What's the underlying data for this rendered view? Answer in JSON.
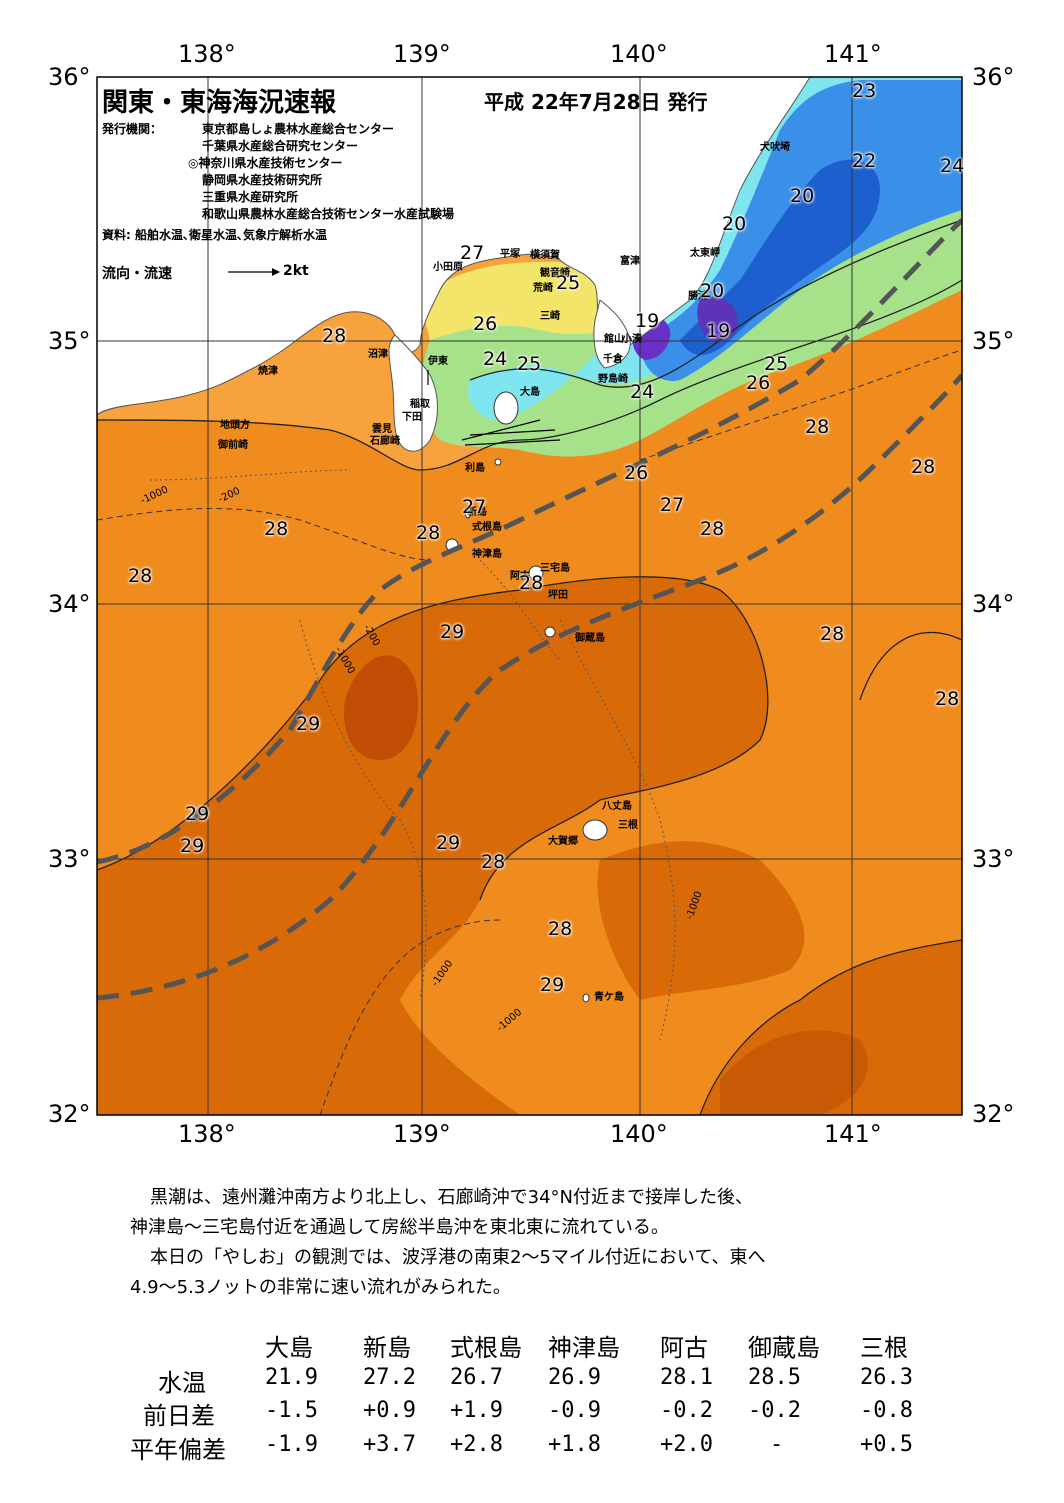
{
  "title": "関東・東海海況速報",
  "issue_date": "平成 22年7月28日 発行",
  "issuers_label": "発行機関：",
  "issuers": [
    "東京都島しょ農林水産総合センター",
    "千葉県水産総合研究センター",
    "◎神奈川県水産技術センター",
    "静岡県水産技術研究所",
    "三重県水産研究所",
    "和歌山県農林水産総合技術センター水産試験場"
  ],
  "sources": "資料: 船舶水温､衛星水温､気象庁解析水温",
  "current_legend": {
    "label": "流向・流速",
    "scale": "2kt"
  },
  "axes": {
    "lon_labels": [
      "138°",
      "139°",
      "140°",
      "141°"
    ],
    "lat_labels": [
      "36°",
      "35°",
      "34°",
      "33°",
      "32°"
    ]
  },
  "place_names": [
    {
      "name": "犬吠埼"
    },
    {
      "name": "太東岬"
    },
    {
      "name": "勝浦"
    },
    {
      "name": "富津"
    },
    {
      "name": "横須賀"
    },
    {
      "name": "観音崎"
    },
    {
      "name": "荒崎"
    },
    {
      "name": "三崎"
    },
    {
      "name": "平塚"
    },
    {
      "name": "小田原"
    },
    {
      "name": "館山"
    },
    {
      "name": "千倉"
    },
    {
      "name": "野島崎"
    },
    {
      "name": "小湊"
    },
    {
      "name": "沼津"
    },
    {
      "name": "伊東"
    },
    {
      "name": "焼津"
    },
    {
      "name": "稲取"
    },
    {
      "name": "下田"
    },
    {
      "name": "雲見"
    },
    {
      "name": "石廊崎"
    },
    {
      "name": "地頭方"
    },
    {
      "name": "御前崎"
    },
    {
      "name": "大島"
    },
    {
      "name": "利島"
    },
    {
      "name": "新島"
    },
    {
      "name": "式根島"
    },
    {
      "name": "神津島"
    },
    {
      "name": "三宅島"
    },
    {
      "name": "阿古"
    },
    {
      "name": "坪田"
    },
    {
      "name": "御蔵島"
    },
    {
      "name": "八丈島"
    },
    {
      "name": "三根"
    },
    {
      "name": "大賀郷"
    },
    {
      "name": "青ケ島"
    }
  ],
  "temperature_labels": [
    "23",
    "22",
    "24",
    "20",
    "20",
    "27",
    "25",
    "26",
    "24",
    "25",
    "20",
    "19",
    "19",
    "28",
    "25",
    "26",
    "24",
    "28",
    "28",
    "26",
    "27",
    "28",
    "28",
    "28",
    "27",
    "29",
    "28",
    "28",
    "29",
    "28",
    "29",
    "29",
    "28",
    "28",
    "28",
    "29",
    "29"
  ],
  "isobath_labels": [
    "-200",
    "-1000"
  ],
  "colors": {
    "deep_orange": "#d85a00",
    "orange": "#f08c1e",
    "light_orange": "#f7a23c",
    "yellow": "#f3e56a",
    "green": "#9ee08a",
    "cyan": "#7fe6f0",
    "blue": "#3a8fe8",
    "dark_blue": "#1d5fcf",
    "purple": "#6a2fc8",
    "land": "#ffffff",
    "kuroshio": "#555555"
  },
  "description": {
    "line1": "黒潮は、遠州灘沖南方より北上し、石廊崎沖で34°N付近まで接岸した後、",
    "line2": "神津島～三宅島付近を通過して房総半島沖を東北東に流れている。",
    "line3": "本日の「やしお」の観測では、波浮港の南東2～5マイル付近において、東へ",
    "line4": "4.9～5.3ノットの非常に速い流れがみられた。"
  },
  "table": {
    "columns": [
      "大島",
      "新島",
      "式根島",
      "神津島",
      "阿古",
      "御蔵島",
      "三根"
    ],
    "rows": [
      {
        "label": "水温",
        "values": [
          "21.9",
          "27.2",
          "26.7",
          "26.9",
          "28.1",
          "28.5",
          "26.3"
        ]
      },
      {
        "label": "前日差",
        "values": [
          "-1.5",
          "+0.9",
          "+1.9",
          "-0.9",
          "-0.2",
          "-0.2",
          "-0.8"
        ]
      },
      {
        "label": "平年偏差",
        "values": [
          "-1.9",
          "+3.7",
          "+2.8",
          "+1.8",
          "+2.0",
          "-",
          "+0.5"
        ]
      }
    ]
  }
}
